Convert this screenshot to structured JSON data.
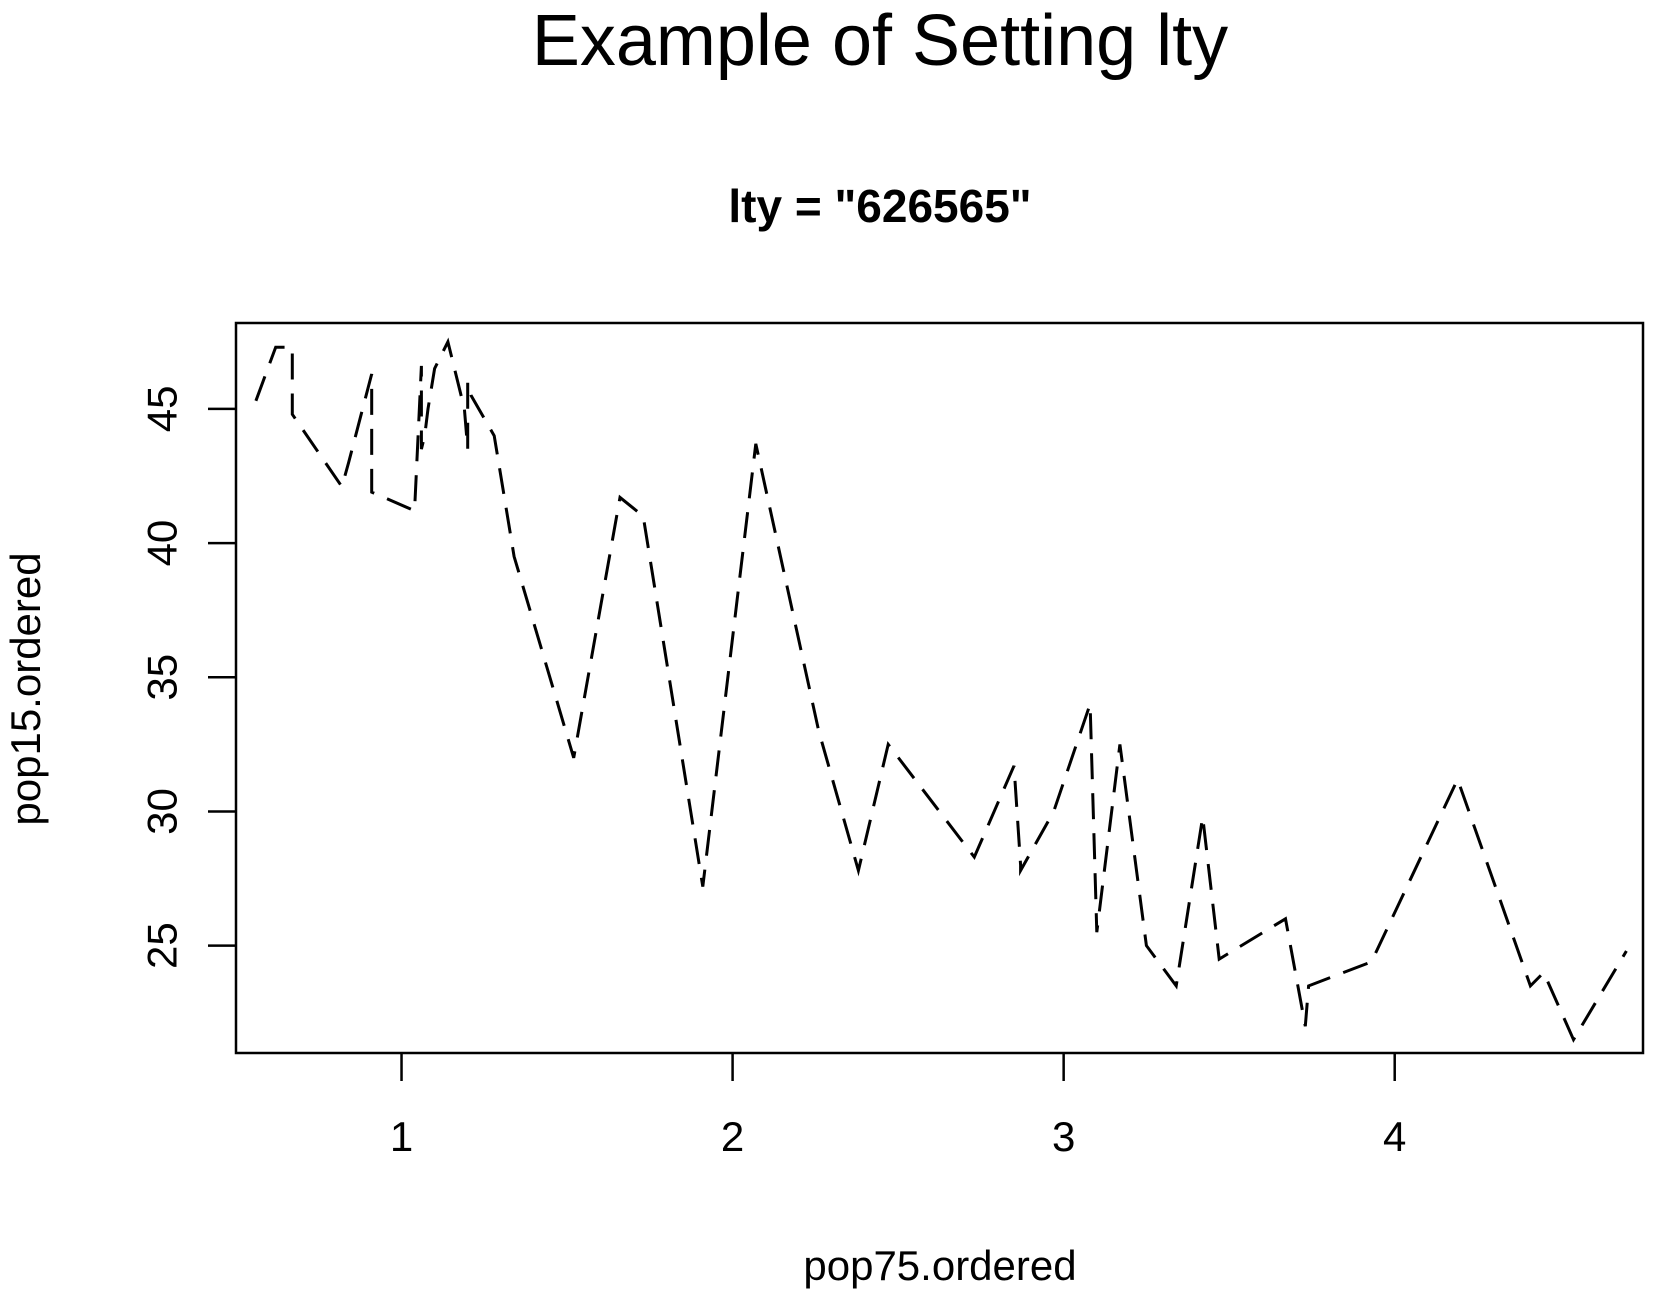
{
  "figure": {
    "title": "Example of Setting lty"
  },
  "chart_data": {
    "type": "line",
    "title": "lty = \"626565\"",
    "xlabel": "pop75.ordered",
    "ylabel": "pop15.ordered",
    "xlim": [
      0.5,
      4.75
    ],
    "ylim": [
      21.0,
      48.2
    ],
    "x_ticks": [
      1,
      2,
      3,
      4
    ],
    "y_ticks": [
      25,
      30,
      35,
      40,
      45
    ],
    "x_tick_labels": [
      "1",
      "2",
      "3",
      "4"
    ],
    "y_tick_labels": [
      "25",
      "30",
      "35",
      "40",
      "45"
    ],
    "grid": false,
    "legend": "none",
    "line_style": "dashed",
    "line_color": "#000000",
    "series": [
      {
        "x": [
          0.56,
          0.62,
          0.67,
          0.67,
          0.82,
          0.84,
          0.91,
          0.91,
          1.04,
          1.04,
          1.06,
          1.06,
          1.06,
          1.07,
          1.08,
          1.1,
          1.14,
          1.19,
          1.2,
          1.2,
          1.21,
          1.28,
          1.34,
          1.52,
          1.66,
          1.73,
          1.91,
          2.07,
          2.26,
          2.38,
          2.47,
          2.73,
          2.85,
          2.87,
          2.87,
          2.97,
          3.08,
          3.1,
          3.17,
          3.25,
          3.34,
          3.42,
          3.47,
          3.67,
          3.73,
          3.74,
          3.93,
          4.19,
          4.41,
          4.45,
          4.54,
          4.7
        ],
        "y": [
          45.3,
          47.3,
          47.3,
          44.8,
          42.1,
          43.0,
          46.3,
          41.9,
          41.2,
          41.4,
          46.6,
          45.0,
          43.5,
          44.0,
          45.0,
          46.5,
          47.5,
          45.0,
          43.5,
          46.0,
          45.5,
          44.0,
          39.5,
          32.0,
          41.7,
          41.0,
          27.2,
          43.7,
          33.0,
          27.8,
          32.5,
          28.3,
          31.7,
          28.0,
          27.8,
          30.0,
          34.0,
          25.5,
          32.5,
          25.0,
          23.5,
          29.8,
          24.5,
          26.0,
          22.0,
          23.5,
          24.4,
          31.2,
          23.5,
          24.0,
          21.5,
          24.8
        ]
      }
    ]
  }
}
